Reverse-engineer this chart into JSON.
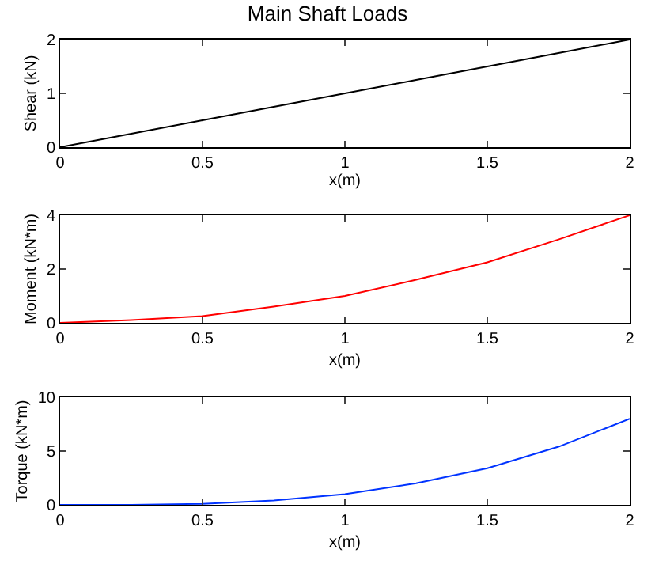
{
  "chart_data": [
    {
      "type": "line",
      "title": "Main Shaft Loads",
      "xlabel": "x(m)",
      "ylabel": "Shear (kN)",
      "x": [
        0,
        0.25,
        0.5,
        0.75,
        1,
        1.25,
        1.5,
        1.75,
        2
      ],
      "series": [
        {
          "color": "#000000",
          "values": [
            0,
            0.25,
            0.5,
            0.75,
            1,
            1.25,
            1.5,
            1.75,
            2
          ]
        }
      ],
      "xlim": [
        0,
        2
      ],
      "xticks": [
        0,
        0.5,
        1,
        1.5,
        2
      ],
      "ylim": [
        0,
        2
      ],
      "yticks": [
        0,
        1,
        2
      ],
      "grid": false
    },
    {
      "type": "line",
      "xlabel": "x(m)",
      "ylabel": "Moment (kN*m)",
      "x": [
        0,
        0.25,
        0.5,
        0.75,
        1,
        1.25,
        1.5,
        1.75,
        2
      ],
      "series": [
        {
          "color": "#ff0000",
          "values": [
            0,
            0.1,
            0.25,
            0.6,
            1,
            1.6,
            2.25,
            3.1,
            4
          ]
        }
      ],
      "xlim": [
        0,
        2
      ],
      "xticks": [
        0,
        0.5,
        1,
        1.5,
        2
      ],
      "ylim": [
        0,
        4
      ],
      "yticks": [
        0,
        2,
        4
      ],
      "grid": false
    },
    {
      "type": "line",
      "xlabel": "x(m)",
      "ylabel": "Torque (kN*m)",
      "x": [
        0,
        0.25,
        0.5,
        0.75,
        1,
        1.25,
        1.5,
        1.75,
        2
      ],
      "series": [
        {
          "color": "#0033ff",
          "values": [
            0,
            0,
            0.1,
            0.4,
            1,
            2,
            3.4,
            5.4,
            8
          ]
        }
      ],
      "xlim": [
        0,
        2
      ],
      "xticks": [
        0,
        0.5,
        1,
        1.5,
        2
      ],
      "ylim": [
        0,
        10
      ],
      "yticks": [
        0,
        5,
        10
      ],
      "grid": false
    }
  ]
}
